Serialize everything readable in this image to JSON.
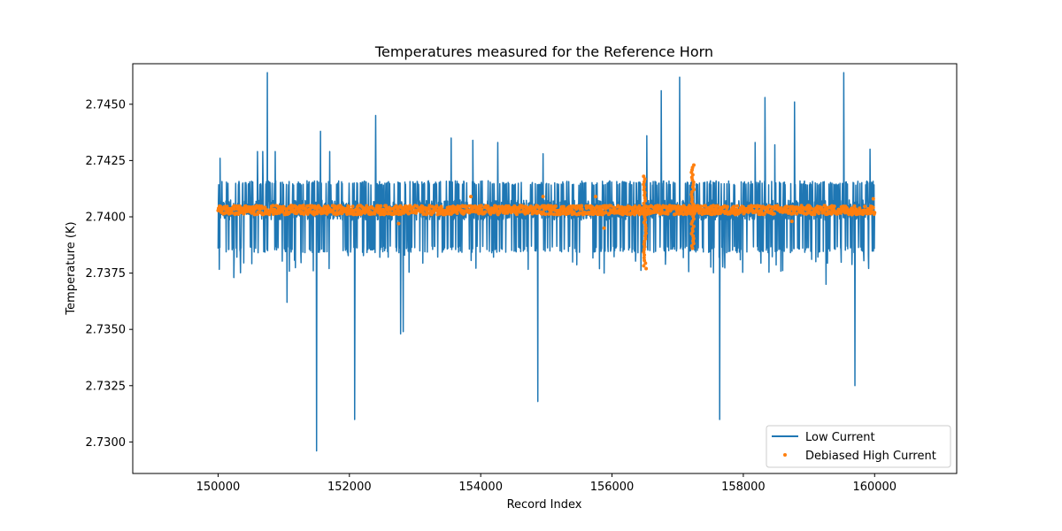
{
  "chart_data": {
    "type": "line",
    "title": "Temperatures measured for the Reference Horn",
    "xlabel": "Record Index",
    "ylabel": "Temperature (K)",
    "xlim": [
      148700,
      161250
    ],
    "ylim": [
      2.7286,
      2.7468
    ],
    "x_ticks": [
      150000,
      152000,
      154000,
      156000,
      158000,
      160000
    ],
    "x_tick_labels": [
      "150000",
      "152000",
      "154000",
      "156000",
      "158000",
      "160000"
    ],
    "y_ticks": [
      2.73,
      2.7325,
      2.735,
      2.7375,
      2.74,
      2.7425,
      2.745
    ],
    "y_tick_labels": [
      "2.7300",
      "2.7325",
      "2.7350",
      "2.7375",
      "2.7400",
      "2.7425",
      "2.7450"
    ],
    "grid": false,
    "legend_position": "lower-right",
    "series": [
      {
        "name": "Low Current",
        "style": "line",
        "color": "#1f77b4",
        "x_range": [
          150000,
          160000
        ],
        "baseline": 2.7403,
        "band_low": 2.7386,
        "band_high": 2.7416,
        "spikes": [
          {
            "x": 150030,
            "y": 2.7426
          },
          {
            "x": 150600,
            "y": 2.7429
          },
          {
            "x": 150680,
            "y": 2.7429
          },
          {
            "x": 150750,
            "y": 2.7464
          },
          {
            "x": 150870,
            "y": 2.7429
          },
          {
            "x": 151560,
            "y": 2.7438
          },
          {
            "x": 151700,
            "y": 2.7429
          },
          {
            "x": 152400,
            "y": 2.7445
          },
          {
            "x": 153550,
            "y": 2.7435
          },
          {
            "x": 153880,
            "y": 2.7434
          },
          {
            "x": 154260,
            "y": 2.7433
          },
          {
            "x": 154950,
            "y": 2.7428
          },
          {
            "x": 156530,
            "y": 2.7436
          },
          {
            "x": 156750,
            "y": 2.7456
          },
          {
            "x": 157030,
            "y": 2.7462
          },
          {
            "x": 158180,
            "y": 2.7433
          },
          {
            "x": 158330,
            "y": 2.7453
          },
          {
            "x": 158480,
            "y": 2.7432
          },
          {
            "x": 158780,
            "y": 2.7451
          },
          {
            "x": 159530,
            "y": 2.7464
          },
          {
            "x": 159930,
            "y": 2.743
          },
          {
            "x": 150240,
            "y": 2.7373
          },
          {
            "x": 151050,
            "y": 2.7362
          },
          {
            "x": 151500,
            "y": 2.7296
          },
          {
            "x": 152080,
            "y": 2.731
          },
          {
            "x": 152780,
            "y": 2.7348
          },
          {
            "x": 152820,
            "y": 2.7349
          },
          {
            "x": 154870,
            "y": 2.7318
          },
          {
            "x": 157640,
            "y": 2.731
          },
          {
            "x": 159260,
            "y": 2.737
          },
          {
            "x": 159700,
            "y": 2.7325
          },
          {
            "x": 151450,
            "y": 2.7376
          },
          {
            "x": 155880,
            "y": 2.7375
          }
        ]
      },
      {
        "name": "Debiased High Current",
        "style": "scatter",
        "color": "#ff7f0e",
        "x_range": [
          150000,
          160000
        ],
        "baseline": 2.7403,
        "scatter_half_width": 0.0002,
        "excursions": [
          {
            "x": 156500,
            "y_min": 2.7377,
            "y_max": 2.7418
          },
          {
            "x": 157230,
            "y_min": 2.7386,
            "y_max": 2.7423
          }
        ],
        "sparse_outliers": [
          {
            "x": 153850,
            "y": 2.7409
          },
          {
            "x": 154950,
            "y": 2.7409
          },
          {
            "x": 155750,
            "y": 2.7409
          },
          {
            "x": 152750,
            "y": 2.7397
          },
          {
            "x": 155880,
            "y": 2.7395
          },
          {
            "x": 158740,
            "y": 2.7398
          },
          {
            "x": 159980,
            "y": 2.7408
          }
        ]
      }
    ]
  }
}
